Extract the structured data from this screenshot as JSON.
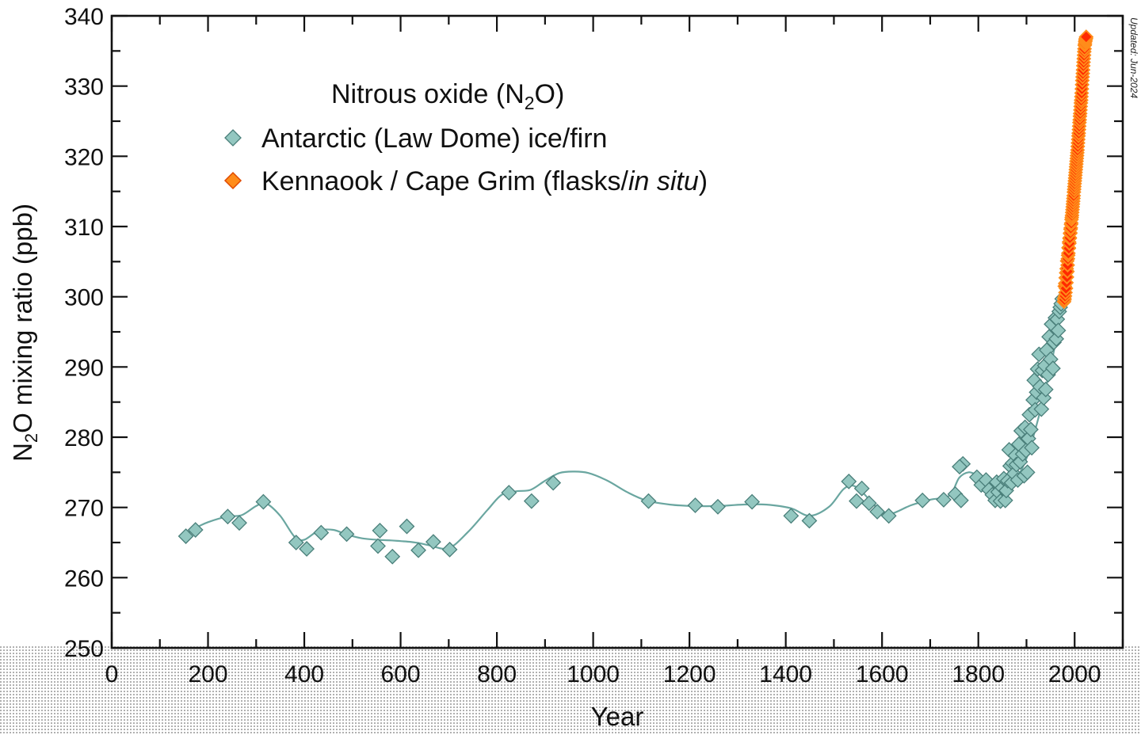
{
  "chart_data": {
    "type": "scatter",
    "title": "",
    "legend": {
      "title_prefix": "Nitrous oxide (N",
      "title_sub": "2",
      "title_suffix": "O)",
      "placement": "top-left"
    },
    "updated": "Updated: Jun-2024",
    "xlabel": "Year",
    "ylabel_prefix": "N",
    "ylabel_sub": "2",
    "ylabel_suffix": "O mixing ratio (ppb)",
    "xlim": [
      0,
      2100
    ],
    "ylim": [
      250,
      340
    ],
    "xticks": [
      0,
      200,
      400,
      600,
      800,
      1000,
      1200,
      1400,
      1600,
      1800,
      2000
    ],
    "yticks": [
      250,
      260,
      270,
      280,
      290,
      300,
      310,
      320,
      330,
      340
    ],
    "grid": false,
    "series": [
      {
        "name": "Antarctic (Law Dome) ice/firn",
        "color": "#93c7c0",
        "marker": "diamond",
        "x": [
          154,
          174,
          241,
          265,
          315,
          383,
          405,
          435,
          488,
          553,
          557,
          583,
          613,
          637,
          668,
          702,
          825,
          872,
          917,
          1115,
          1212,
          1259,
          1330,
          1411,
          1449,
          1531,
          1547,
          1558,
          1573,
          1590,
          1614,
          1684,
          1728,
          1752,
          1764,
          1768,
          1761,
          1797,
          1806,
          1816,
          1822,
          1829,
          1835,
          1838,
          1841,
          1846,
          1850,
          1853,
          1856,
          1858,
          1861,
          1864,
          1866,
          1869,
          1871,
          1874,
          1877,
          1879,
          1882,
          1884,
          1887,
          1889,
          1892,
          1895,
          1897,
          1899,
          1902,
          1904,
          1906,
          1909,
          1911,
          1914,
          1916,
          1918,
          1921,
          1923,
          1926,
          1928,
          1931,
          1933,
          1936,
          1938,
          1940,
          1942,
          1945,
          1947,
          1950,
          1952,
          1955,
          1957,
          1960,
          1962,
          1964,
          1966,
          1968,
          1970,
          1972,
          1974
        ],
        "y": [
          265.9,
          266.8,
          268.7,
          267.8,
          270.8,
          265.0,
          264.1,
          266.4,
          266.2,
          264.5,
          266.7,
          263.0,
          267.3,
          263.9,
          265.1,
          264.0,
          272.1,
          270.9,
          273.5,
          270.9,
          270.3,
          270.1,
          270.8,
          268.8,
          268.1,
          273.7,
          270.9,
          272.7,
          270.6,
          269.4,
          268.8,
          271.0,
          271.1,
          271.9,
          271.0,
          276.2,
          275.8,
          274.3,
          273.2,
          273.9,
          272.5,
          271.8,
          271.0,
          273.6,
          272.2,
          270.9,
          272.8,
          274.1,
          271.0,
          272.4,
          273.8,
          278.2,
          275.9,
          273.5,
          276.3,
          274.8,
          277.4,
          276.1,
          273.9,
          279.0,
          276.5,
          280.9,
          277.6,
          274.5,
          281.4,
          278.1,
          275.0,
          279.8,
          283.2,
          281.1,
          278.5,
          285.3,
          288.1,
          283.9,
          286.4,
          289.7,
          291.8,
          287.2,
          284.0,
          289.5,
          285.6,
          290.2,
          286.8,
          292.4,
          288.9,
          294.3,
          291.1,
          296.1,
          289.8,
          293.5,
          297.0,
          294.0,
          296.8,
          295.2,
          297.9,
          298.5,
          299.0,
          299.7
        ]
      },
      {
        "name": "Kennaook / Cape Grim (flasks/in situ)",
        "name_plain": "Kennaook / Cape Grim (flasks/",
        "name_italic": "in situ",
        "name_close": ")",
        "color": "#ff8c1a",
        "marker": "diamond",
        "x": [
          1978.0,
          1978.5,
          1979.0,
          1979.5,
          1980.0,
          1980.5,
          1981.0,
          1981.5,
          1982.0,
          1982.5,
          1983.0,
          1983.5,
          1984.0,
          1984.5,
          1985.0,
          1985.5,
          1986.0,
          1986.5,
          1987.0,
          1987.5,
          1988.0,
          1988.5,
          1989.0,
          1989.5,
          1990.0,
          1990.5,
          1991.0,
          1991.5,
          1992.0,
          1992.5,
          1993.0,
          1993.5,
          1994.0,
          1994.5,
          1995.0,
          1995.5,
          1996.0,
          1996.5,
          1997.0,
          1997.5,
          1998.0,
          1998.5,
          1999.0,
          1999.5,
          2000.0,
          2000.5,
          2001.0,
          2001.5,
          2002.0,
          2002.5,
          2003.0,
          2003.5,
          2004.0,
          2004.5,
          2005.0,
          2005.5,
          2006.0,
          2006.5,
          2007.0,
          2007.5,
          2008.0,
          2008.5,
          2009.0,
          2009.5,
          2010.0,
          2010.5,
          2011.0,
          2011.5,
          2012.0,
          2012.5,
          2013.0,
          2013.5,
          2014.0,
          2014.5,
          2015.0,
          2015.5,
          2016.0,
          2016.5,
          2017.0,
          2017.5,
          2018.0,
          2018.5,
          2019.0,
          2019.5,
          2020.0,
          2020.5,
          2021.0,
          2021.5,
          2022.0,
          2022.5,
          2023.0,
          2023.5,
          2024.0
        ],
        "y": [
          299.3,
          299.8,
          299.6,
          301.5,
          300.1,
          301.9,
          300.6,
          302.7,
          301.2,
          303.4,
          302.0,
          304.0,
          302.8,
          305.1,
          303.6,
          304.5,
          305.4,
          305.9,
          306.2,
          307.0,
          306.9,
          307.8,
          307.6,
          308.3,
          308.4,
          309.0,
          309.1,
          309.6,
          309.8,
          310.3,
          310.5,
          311.0,
          311.3,
          311.6,
          312.0,
          312.4,
          312.8,
          313.2,
          313.6,
          314.0,
          314.4,
          314.9,
          315.3,
          315.7,
          316.1,
          316.5,
          316.9,
          317.3,
          317.7,
          318.1,
          318.5,
          318.9,
          319.3,
          319.7,
          320.1,
          320.5,
          320.9,
          321.4,
          321.9,
          322.4,
          322.9,
          323.3,
          323.8,
          324.3,
          324.8,
          325.2,
          325.7,
          326.1,
          326.6,
          327.1,
          327.6,
          328.0,
          328.5,
          329.0,
          329.6,
          330.2,
          330.8,
          331.3,
          331.8,
          332.3,
          332.9,
          333.4,
          333.9,
          334.4,
          334.9,
          335.3,
          335.8,
          336.0,
          336.3,
          336.5,
          336.7,
          336.8,
          337.0
        ]
      }
    ],
    "fit_curve": {
      "x": [
        150,
        175,
        200,
        240,
        270,
        300,
        320,
        350,
        380,
        400,
        430,
        460,
        490,
        520,
        550,
        580,
        600,
        620,
        640,
        660,
        700,
        740,
        780,
        810,
        840,
        870,
        900,
        930,
        960,
        990,
        1030,
        1070,
        1110,
        1160,
        1210,
        1260,
        1310,
        1360,
        1410,
        1450,
        1490,
        1520,
        1540,
        1560,
        1580,
        1600,
        1620,
        1660,
        1700,
        1740,
        1760,
        1780,
        1800,
        1820,
        1840,
        1860,
        1880,
        1900,
        1920,
        1940,
        1960,
        1975
      ],
      "y": [
        266.0,
        267.1,
        267.9,
        268.7,
        268.9,
        270.2,
        270.6,
        268.8,
        265.8,
        265.4,
        266.7,
        266.8,
        266.1,
        265.6,
        265.4,
        265.3,
        265.2,
        265.1,
        264.9,
        264.6,
        264.2,
        266.5,
        269.6,
        271.8,
        272.3,
        272.5,
        273.8,
        274.9,
        275.1,
        274.9,
        273.8,
        272.2,
        271.0,
        270.4,
        270.2,
        270.2,
        270.4,
        270.4,
        269.9,
        268.8,
        270.1,
        272.6,
        273.1,
        272.1,
        270.6,
        269.3,
        269.1,
        270.3,
        271.1,
        271.7,
        274.2,
        275.0,
        274.5,
        273.8,
        273.2,
        272.9,
        274.2,
        277.0,
        281.5,
        287.0,
        293.3,
        298.8
      ]
    }
  }
}
